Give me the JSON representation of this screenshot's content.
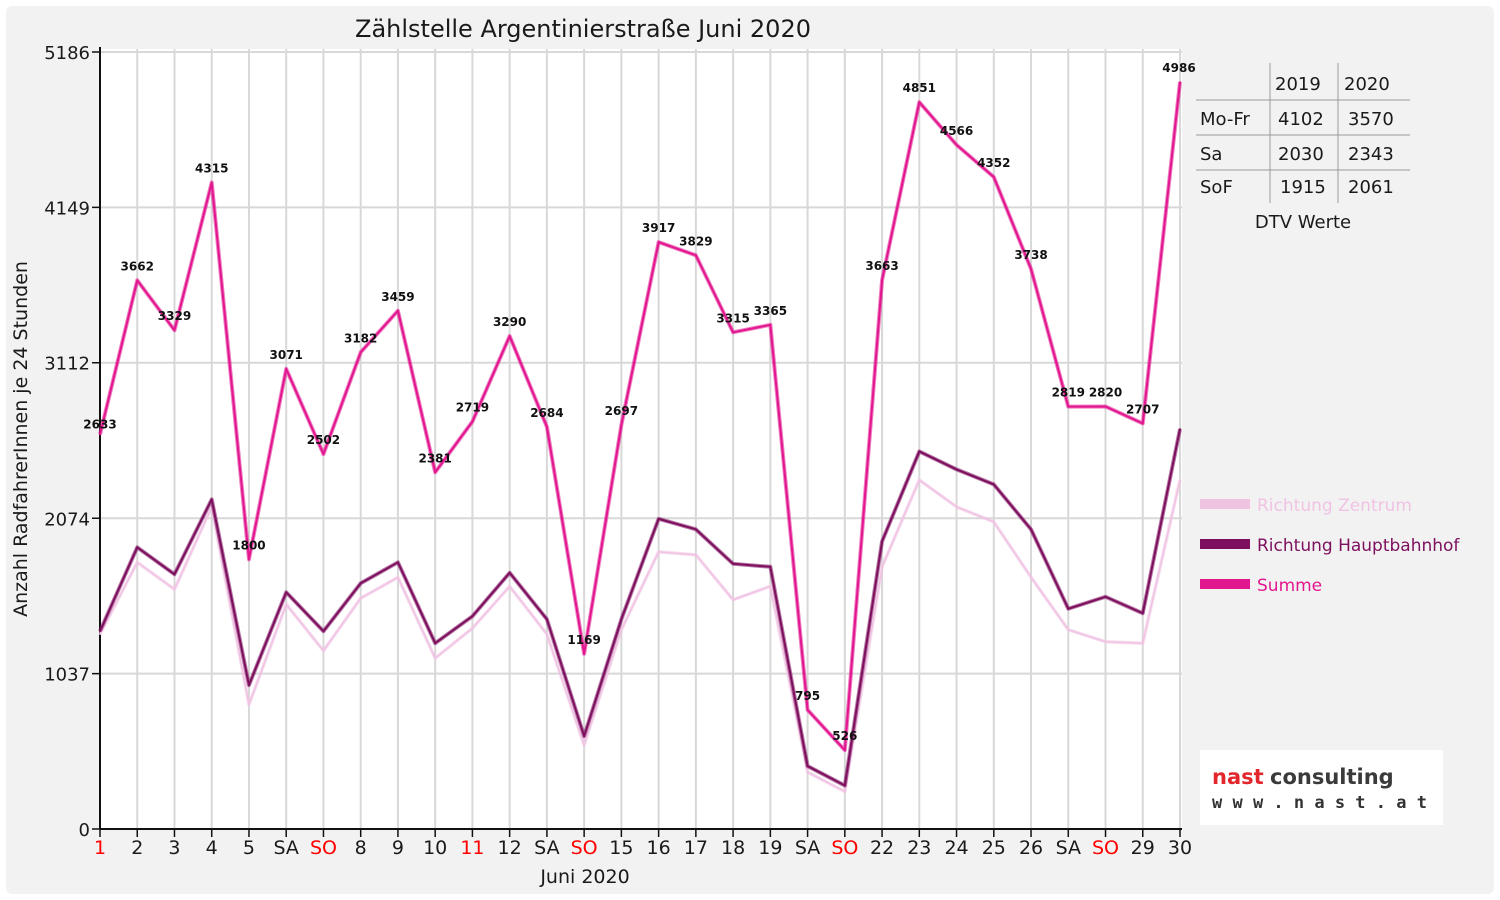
{
  "chart_data": {
    "type": "line",
    "title": "Zählstelle Argentinierstraße Juni 2020",
    "xlabel": "Juni 2020",
    "ylabel": "Anzahl RadfahrerInnen je 24 Stunden",
    "ylim": [
      0,
      5186
    ],
    "yticks": [
      0,
      1037,
      2074,
      3112,
      4149,
      5186
    ],
    "grid": true,
    "legend_position": "right",
    "categories": [
      "1",
      "2",
      "3",
      "4",
      "5",
      "SA",
      "SO",
      "8",
      "9",
      "10",
      "11",
      "12",
      "SA",
      "SO",
      "15",
      "16",
      "17",
      "18",
      "19",
      "SA",
      "SO",
      "22",
      "23",
      "24",
      "25",
      "26",
      "SA",
      "SO",
      "29",
      "30"
    ],
    "red_categories": [
      0,
      6,
      10,
      13,
      20,
      27
    ],
    "series": [
      {
        "name": "Richtung Zentrum",
        "color": "#f0c3e3",
        "values": [
          1300,
          1780,
          1600,
          2150,
          830,
          1500,
          1190,
          1540,
          1680,
          1140,
          1340,
          1620,
          1300,
          560,
          1330,
          1850,
          1830,
          1530,
          1620,
          380,
          250,
          1750,
          2330,
          2150,
          2050,
          1680,
          1330,
          1250,
          1240,
          2330
        ]
      },
      {
        "name": "Richtung Hauptbahnhof",
        "color": "#7d0f5e",
        "values": [
          1320,
          1880,
          1700,
          2200,
          960,
          1580,
          1320,
          1640,
          1780,
          1240,
          1420,
          1710,
          1400,
          620,
          1400,
          2070,
          2000,
          1770,
          1750,
          420,
          290,
          1920,
          2520,
          2400,
          2300,
          2000,
          1470,
          1550,
          1440,
          2670
        ]
      },
      {
        "name": "Summe",
        "color": "#e2168f",
        "values": [
          2633,
          3662,
          3329,
          4315,
          1800,
          3071,
          2502,
          3182,
          3459,
          2381,
          2719,
          3290,
          2684,
          1169,
          2697,
          3917,
          3829,
          3315,
          3365,
          795,
          526,
          3663,
          4851,
          4566,
          4352,
          3738,
          2819,
          2820,
          2707,
          4986
        ]
      }
    ]
  },
  "dtv_table": {
    "caption": "DTV Werte",
    "headers": [
      "",
      "2019",
      "2020"
    ],
    "rows": [
      [
        "Mo-Fr",
        "4102",
        "3570"
      ],
      [
        "Sa",
        "2030",
        "2343"
      ],
      [
        "SoF",
        "1915",
        "2061"
      ]
    ]
  },
  "logo": {
    "name_part1": "nast",
    "name_part2": "consulting",
    "url": "w w w . n a s t . a t"
  },
  "colors": {
    "frame": "#f2f2f2",
    "grid": "#d8d8d8",
    "axis": "#111111",
    "holiday_red": "#ff0000"
  }
}
